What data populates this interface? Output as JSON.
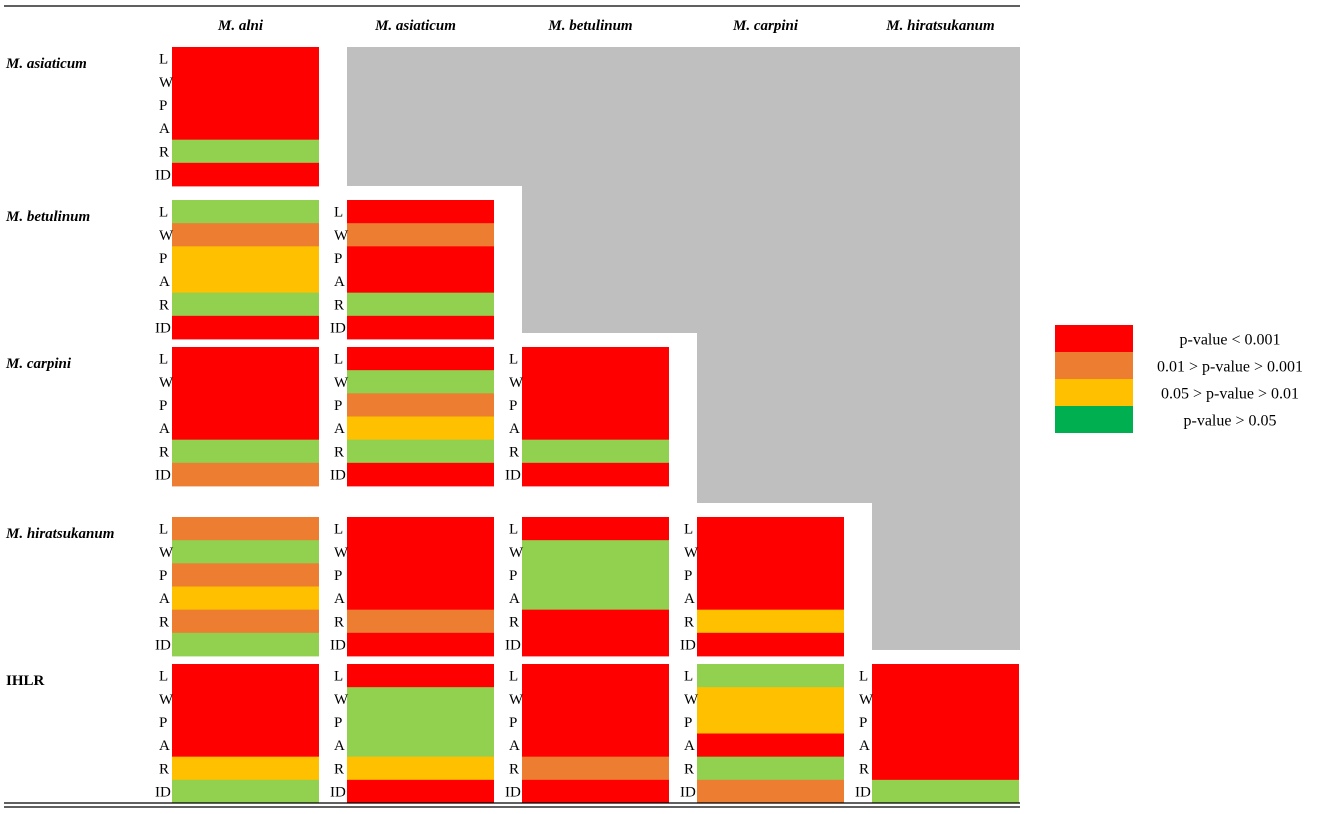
{
  "chart_data": {
    "type": "heatmap",
    "title": "",
    "columns": [
      "M. alni",
      "M. asiaticum",
      "M. betulinum",
      "M. carpini",
      "M. hiratsukanum"
    ],
    "rows": [
      "M. asiaticum",
      "M. betulinum",
      "M. carpini",
      "M. hiratsukanum",
      "IHLR"
    ],
    "row_italic": [
      true,
      true,
      true,
      true,
      false
    ],
    "traits": [
      "L",
      "W",
      "P",
      "A",
      "R",
      "ID"
    ],
    "legend": [
      {
        "key": "red",
        "label": "p-value < 0.001",
        "color": "#ff0000"
      },
      {
        "key": "orange",
        "label": "0.01 > p-value > 0.001",
        "color": "#ed7d31"
      },
      {
        "key": "yellow",
        "label": "0.05 > p-value > 0.01",
        "color": "#ffc000"
      },
      {
        "key": "green",
        "label": "p-value > 0.05",
        "color": "#00b050"
      }
    ],
    "cell_colors": {
      "red": "#ff0000",
      "orange": "#ed7d31",
      "yellow": "#ffc000",
      "lightgreen": "#92d050"
    },
    "upper_triangle_color": "#bfbfbf",
    "cells": [
      [
        [
          "red",
          "red",
          "red",
          "red",
          "lightgreen",
          "red"
        ]
      ],
      [
        [
          "lightgreen",
          "orange",
          "yellow",
          "yellow",
          "lightgreen",
          "red"
        ],
        [
          "red",
          "orange",
          "red",
          "red",
          "lightgreen",
          "red"
        ]
      ],
      [
        [
          "red",
          "red",
          "red",
          "red",
          "lightgreen",
          "orange"
        ],
        [
          "red",
          "lightgreen",
          "orange",
          "yellow",
          "lightgreen",
          "red"
        ],
        [
          "red",
          "red",
          "red",
          "red",
          "lightgreen",
          "red"
        ]
      ],
      [
        [
          "orange",
          "lightgreen",
          "orange",
          "yellow",
          "orange",
          "lightgreen"
        ],
        [
          "red",
          "red",
          "red",
          "red",
          "orange",
          "red"
        ],
        [
          "red",
          "lightgreen",
          "lightgreen",
          "lightgreen",
          "red",
          "red"
        ],
        [
          "red",
          "red",
          "red",
          "red",
          "yellow",
          "red"
        ]
      ],
      [
        [
          "red",
          "red",
          "red",
          "red",
          "yellow",
          "lightgreen"
        ],
        [
          "red",
          "lightgreen",
          "lightgreen",
          "lightgreen",
          "yellow",
          "red"
        ],
        [
          "red",
          "red",
          "red",
          "red",
          "orange",
          "red"
        ],
        [
          "lightgreen",
          "yellow",
          "yellow",
          "red",
          "lightgreen",
          "orange"
        ],
        [
          "red",
          "red",
          "red",
          "red",
          "red",
          "lightgreen"
        ]
      ]
    ]
  }
}
